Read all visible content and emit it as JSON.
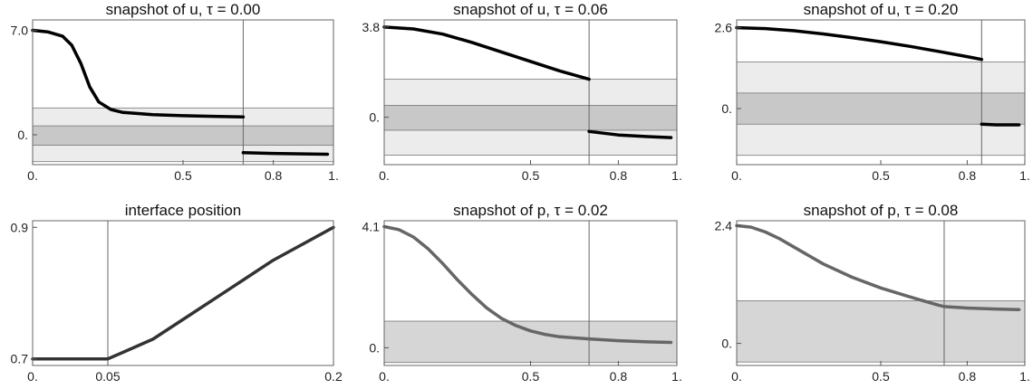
{
  "chart_data": [
    {
      "type": "line",
      "title": "snapshot of u, τ = 0.00",
      "xlim": [
        0,
        1
      ],
      "ylim": [
        -2,
        7.7
      ],
      "xticks": [
        {
          "v": 0,
          "label": "0."
        },
        {
          "v": 0.5,
          "label": "0.5"
        },
        {
          "v": 0.8,
          "label": "0.8"
        },
        {
          "v": 1,
          "label": "1."
        }
      ],
      "yticks": [
        {
          "v": 7.0,
          "label": "7.0"
        },
        {
          "v": 0,
          "label": "0."
        }
      ],
      "interface_x": 0.7,
      "bands": [
        {
          "y0": -1.8,
          "y1": 1.8,
          "color": "#ececec"
        },
        {
          "y0": -0.7,
          "y1": 0.6,
          "color": "#c8c8c8"
        }
      ],
      "series": [
        {
          "color": "#000000",
          "width": 3.5,
          "points": [
            [
              0,
              7.0
            ],
            [
              0.05,
              6.9
            ],
            [
              0.1,
              6.6
            ],
            [
              0.13,
              6.0
            ],
            [
              0.16,
              4.8
            ],
            [
              0.19,
              3.2
            ],
            [
              0.22,
              2.2
            ],
            [
              0.26,
              1.7
            ],
            [
              0.3,
              1.5
            ],
            [
              0.4,
              1.35
            ],
            [
              0.5,
              1.28
            ],
            [
              0.6,
              1.24
            ],
            [
              0.7,
              1.2
            ]
          ]
        },
        {
          "color": "#000000",
          "width": 3.5,
          "points": [
            [
              0.7,
              -1.2
            ],
            [
              0.8,
              -1.25
            ],
            [
              0.9,
              -1.28
            ],
            [
              0.98,
              -1.3
            ]
          ]
        }
      ]
    },
    {
      "type": "line",
      "title": "snapshot of u, τ = 0.06",
      "xlim": [
        0,
        1
      ],
      "ylim": [
        -2.0,
        4.1
      ],
      "xticks": [
        {
          "v": 0,
          "label": "0."
        },
        {
          "v": 0.5,
          "label": "0.5"
        },
        {
          "v": 0.8,
          "label": "0.8"
        },
        {
          "v": 1,
          "label": "1."
        }
      ],
      "yticks": [
        {
          "v": 3.8,
          "label": "3.8"
        },
        {
          "v": 0,
          "label": "0."
        }
      ],
      "interface_x": 0.7,
      "bands": [
        {
          "y0": -1.6,
          "y1": 1.6,
          "color": "#ececec"
        },
        {
          "y0": -0.55,
          "y1": 0.5,
          "color": "#c8c8c8"
        }
      ],
      "series": [
        {
          "color": "#000000",
          "width": 3.5,
          "points": [
            [
              0,
              3.8
            ],
            [
              0.1,
              3.72
            ],
            [
              0.2,
              3.5
            ],
            [
              0.3,
              3.15
            ],
            [
              0.4,
              2.75
            ],
            [
              0.5,
              2.35
            ],
            [
              0.6,
              1.95
            ],
            [
              0.7,
              1.6
            ]
          ]
        },
        {
          "color": "#000000",
          "width": 3.5,
          "points": [
            [
              0.7,
              -0.6
            ],
            [
              0.8,
              -0.75
            ],
            [
              0.9,
              -0.82
            ],
            [
              0.98,
              -0.86
            ]
          ]
        }
      ]
    },
    {
      "type": "line",
      "title": "snapshot of u, τ = 0.20",
      "xlim": [
        0,
        1
      ],
      "ylim": [
        -1.8,
        2.85
      ],
      "xticks": [
        {
          "v": 0,
          "label": "0."
        },
        {
          "v": 0.5,
          "label": "0.5"
        },
        {
          "v": 0.8,
          "label": "0.8"
        },
        {
          "v": 1,
          "label": "1."
        }
      ],
      "yticks": [
        {
          "v": 2.6,
          "label": "2.6"
        },
        {
          "v": 0,
          "label": "0."
        }
      ],
      "interface_x": 0.85,
      "bands": [
        {
          "y0": -1.5,
          "y1": 1.5,
          "color": "#ececec"
        },
        {
          "y0": -0.5,
          "y1": 0.5,
          "color": "#c8c8c8"
        }
      ],
      "series": [
        {
          "color": "#000000",
          "width": 3.5,
          "points": [
            [
              0,
              2.6
            ],
            [
              0.1,
              2.57
            ],
            [
              0.2,
              2.5
            ],
            [
              0.3,
              2.4
            ],
            [
              0.4,
              2.28
            ],
            [
              0.5,
              2.15
            ],
            [
              0.6,
              2.0
            ],
            [
              0.7,
              1.84
            ],
            [
              0.8,
              1.67
            ],
            [
              0.85,
              1.58
            ]
          ]
        },
        {
          "color": "#000000",
          "width": 3.5,
          "points": [
            [
              0.85,
              -0.5
            ],
            [
              0.9,
              -0.52
            ],
            [
              0.98,
              -0.52
            ]
          ]
        }
      ]
    },
    {
      "type": "line",
      "title": "interface position",
      "xlim": [
        0,
        0.2
      ],
      "ylim": [
        0.69,
        0.91
      ],
      "xticks": [
        {
          "v": 0,
          "label": "0."
        },
        {
          "v": 0.05,
          "label": "0.05"
        },
        {
          "v": 0.2,
          "label": "0.2"
        }
      ],
      "yticks": [
        {
          "v": 0.9,
          "label": "0.9"
        },
        {
          "v": 0.7,
          "label": "0.7"
        }
      ],
      "interface_x": 0.05,
      "bands": [],
      "series": [
        {
          "color": "#333333",
          "width": 3.5,
          "points": [
            [
              0,
              0.7
            ],
            [
              0.05,
              0.7
            ],
            [
              0.06,
              0.71
            ],
            [
              0.08,
              0.73
            ],
            [
              0.1,
              0.76
            ],
            [
              0.12,
              0.79
            ],
            [
              0.14,
              0.82
            ],
            [
              0.16,
              0.85
            ],
            [
              0.18,
              0.875
            ],
            [
              0.2,
              0.9
            ]
          ]
        }
      ]
    },
    {
      "type": "line",
      "title": "snapshot of p, τ = 0.02",
      "xlim": [
        0,
        1
      ],
      "ylim": [
        -0.6,
        4.3
      ],
      "xticks": [
        {
          "v": 0,
          "label": "0."
        },
        {
          "v": 0.5,
          "label": "0.5"
        },
        {
          "v": 0.8,
          "label": "0.8"
        },
        {
          "v": 1,
          "label": "1."
        }
      ],
      "yticks": [
        {
          "v": 4.1,
          "label": "4.1"
        },
        {
          "v": 0,
          "label": "0."
        }
      ],
      "interface_x": 0.7,
      "bands": [
        {
          "y0": -0.5,
          "y1": 0.9,
          "color": "#d6d6d6"
        }
      ],
      "series": [
        {
          "color": "#666666",
          "width": 3.5,
          "points": [
            [
              0,
              4.1
            ],
            [
              0.05,
              4.0
            ],
            [
              0.1,
              3.75
            ],
            [
              0.15,
              3.35
            ],
            [
              0.2,
              2.85
            ],
            [
              0.25,
              2.3
            ],
            [
              0.3,
              1.8
            ],
            [
              0.35,
              1.35
            ],
            [
              0.4,
              1.0
            ],
            [
              0.45,
              0.75
            ],
            [
              0.5,
              0.57
            ],
            [
              0.55,
              0.45
            ],
            [
              0.6,
              0.37
            ],
            [
              0.7,
              0.3
            ],
            [
              0.8,
              0.24
            ],
            [
              0.9,
              0.2
            ],
            [
              0.98,
              0.18
            ]
          ]
        }
      ]
    },
    {
      "type": "line",
      "title": "snapshot of p, τ = 0.08",
      "xlim": [
        0,
        1
      ],
      "ylim": [
        -0.45,
        2.5
      ],
      "xticks": [
        {
          "v": 0,
          "label": "0."
        },
        {
          "v": 0.5,
          "label": "0.5"
        },
        {
          "v": 0.8,
          "label": "0.8"
        },
        {
          "v": 1,
          "label": "1."
        }
      ],
      "yticks": [
        {
          "v": 2.4,
          "label": "2.4"
        },
        {
          "v": 0,
          "label": "0."
        }
      ],
      "interface_x": 0.72,
      "bands": [
        {
          "y0": -0.38,
          "y1": 0.87,
          "color": "#d6d6d6"
        }
      ],
      "series": [
        {
          "color": "#666666",
          "width": 3.5,
          "points": [
            [
              0,
              2.4
            ],
            [
              0.05,
              2.37
            ],
            [
              0.1,
              2.27
            ],
            [
              0.15,
              2.13
            ],
            [
              0.2,
              1.96
            ],
            [
              0.3,
              1.62
            ],
            [
              0.4,
              1.35
            ],
            [
              0.5,
              1.13
            ],
            [
              0.6,
              0.95
            ],
            [
              0.7,
              0.78
            ],
            [
              0.72,
              0.75
            ],
            [
              0.8,
              0.72
            ],
            [
              0.9,
              0.7
            ],
            [
              0.98,
              0.69
            ]
          ]
        }
      ]
    }
  ]
}
